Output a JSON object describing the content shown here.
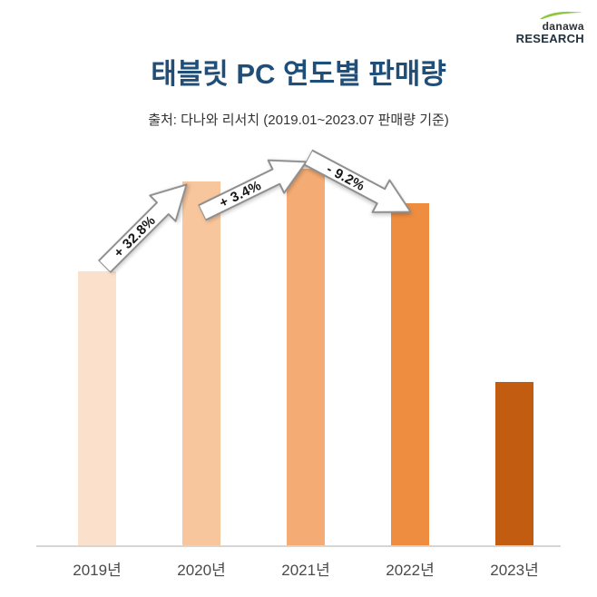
{
  "logo": {
    "brand": "danawa",
    "sub": "RESEARCH",
    "swoosh_color": "#8dc63f"
  },
  "header": {
    "title": "태블릿 PC 연도별 판매량",
    "subtitle": "출처: 다나와 리서치 (2019.01~2023.07 판매량 기준)"
  },
  "chart_data": {
    "type": "bar",
    "title": "태블릿 PC 연도별 판매량",
    "categories": [
      "2019년",
      "2020년",
      "2021년",
      "2022년",
      "2023년"
    ],
    "values": [
      100,
      132.8,
      137.3,
      124.7,
      59.6
    ],
    "values_note": "relative index, 2019 = 100; estimated from bar heights (no value labels shown)",
    "colors": [
      "#fbe0cb",
      "#f8c69d",
      "#f5ac74",
      "#ee8c3f",
      "#c25c10"
    ],
    "annotations": [
      {
        "label": "+ 32.8%",
        "between": [
          "2019년",
          "2020년"
        ],
        "direction": "up"
      },
      {
        "label": "+ 3.4%",
        "between": [
          "2020년",
          "2021년"
        ],
        "direction": "up"
      },
      {
        "label": "- 9.2%",
        "between": [
          "2021년",
          "2022년"
        ],
        "direction": "down"
      }
    ],
    "xlabel": "",
    "ylabel": "",
    "ylim": [
      0,
      140
    ],
    "grid": false,
    "legend": false
  }
}
